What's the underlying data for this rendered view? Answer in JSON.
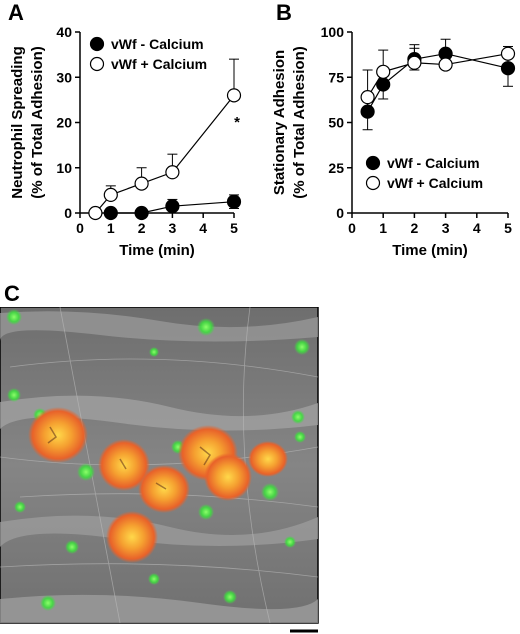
{
  "panels": {
    "a": "A",
    "b": "B",
    "c": "C"
  },
  "chart_data": [
    {
      "panel": "A",
      "type": "line",
      "xlabel": "Time (min)",
      "ylabel": "Neutrophil Spreading",
      "ylabel2": "(% of Total Adhesion)",
      "xlim": [
        0,
        5
      ],
      "ylim": [
        0,
        40
      ],
      "xticks": [
        0,
        1,
        2,
        3,
        4,
        5
      ],
      "yticks": [
        0,
        10,
        20,
        30,
        40
      ],
      "legend_position": "top-left",
      "annotations": [
        {
          "text": "*",
          "x": 5,
          "y": 19
        }
      ],
      "series": [
        {
          "name": "vWf - Calcium",
          "marker": "filled-circle",
          "x": [
            1,
            2,
            3,
            5
          ],
          "y": [
            0,
            0,
            1.5,
            2.5
          ],
          "err": [
            0,
            0,
            1.5,
            1.5
          ]
        },
        {
          "name": "vWf + Calcium",
          "marker": "open-circle",
          "x": [
            0.5,
            1,
            2,
            3,
            5
          ],
          "y": [
            0,
            4,
            6.5,
            9,
            26
          ],
          "err": [
            0,
            2,
            3.5,
            4,
            8
          ]
        }
      ]
    },
    {
      "panel": "B",
      "type": "line",
      "xlabel": "Time (min)",
      "ylabel": "Stationary Adhesion",
      "ylabel2": "(% of Total Adhesion)",
      "xlim": [
        0,
        5
      ],
      "ylim": [
        0,
        100
      ],
      "xticks": [
        0,
        1,
        2,
        3,
        4,
        5
      ],
      "yticks": [
        0,
        25,
        50,
        75,
        100
      ],
      "legend_position": "bottom-right",
      "series": [
        {
          "name": "vWf - Calcium",
          "marker": "filled-circle",
          "x": [
            0.5,
            1,
            2,
            3,
            5
          ],
          "y": [
            56,
            71,
            85,
            88,
            80
          ],
          "err": [
            10,
            8,
            6,
            8,
            10
          ]
        },
        {
          "name": "vWf + Calcium",
          "marker": "open-circle",
          "x": [
            0.5,
            1,
            2,
            3,
            5
          ],
          "y": [
            64,
            78,
            83,
            82,
            88
          ],
          "err": [
            15,
            12,
            10,
            7,
            4
          ]
        }
      ]
    }
  ],
  "colors": {
    "micro_background": "#7a7a7a",
    "green_cells": "#3fdc3f",
    "orange_cells": "#f07828",
    "yellow_highlight": "#f2d23a",
    "scale_bar": "#000000"
  }
}
